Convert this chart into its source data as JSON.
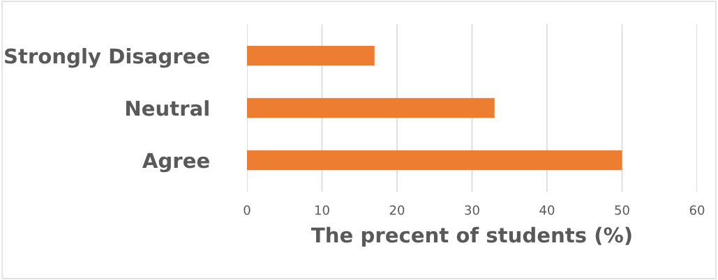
{
  "chart_data": {
    "type": "bar",
    "orientation": "horizontal",
    "categories": [
      "Strongly Disagree",
      "Neutral",
      "Agree"
    ],
    "values": [
      17,
      33,
      50
    ],
    "color": "#ed7d31",
    "xlabel": "The precent of students (%)",
    "xlim": [
      0,
      60
    ],
    "xticks": [
      0,
      10,
      20,
      30,
      40,
      50,
      60
    ],
    "grid": "x"
  }
}
